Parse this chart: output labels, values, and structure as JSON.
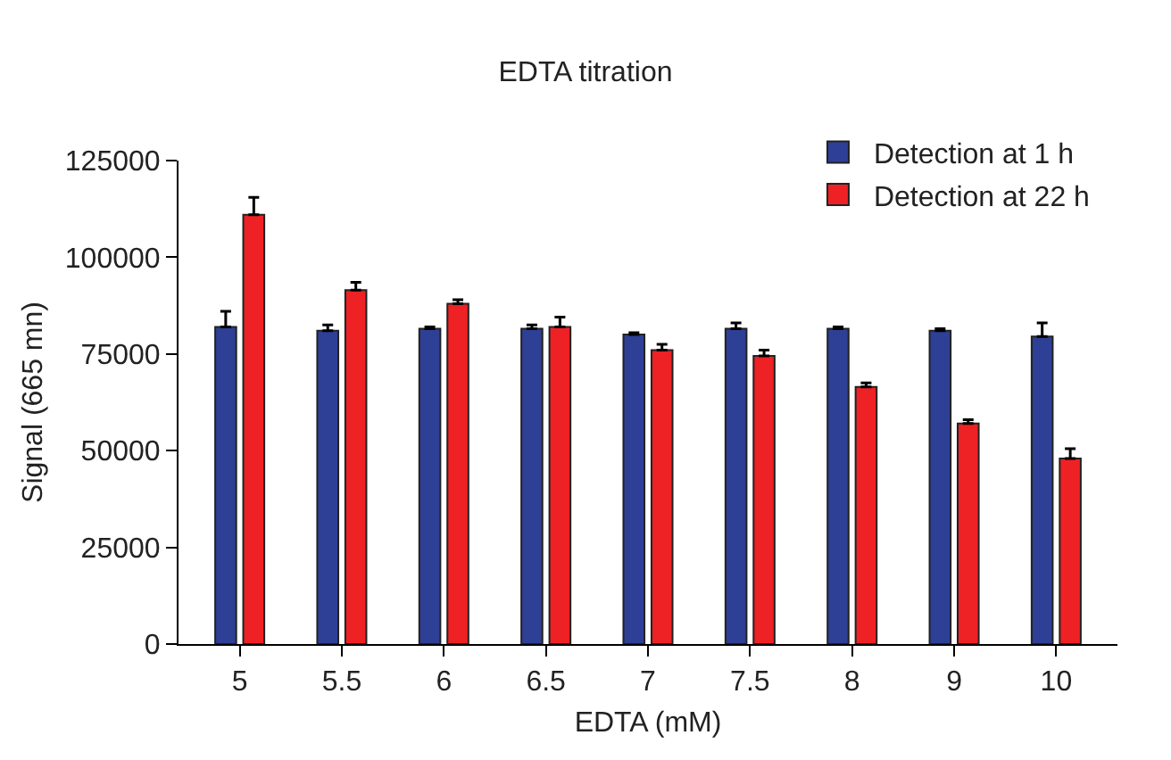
{
  "chart_data": {
    "type": "bar",
    "title": "EDTA titration",
    "xlabel": "EDTA (mM)",
    "ylabel": "Signal (665 mn)",
    "categories": [
      "5",
      "5.5",
      "6",
      "6.5",
      "7",
      "7.5",
      "8",
      "9",
      "10"
    ],
    "series": [
      {
        "name": "Detection at 1 h",
        "color": "#2e3f96",
        "values": [
          82000,
          81000,
          81500,
          81500,
          80000,
          81500,
          81500,
          81000,
          79500
        ],
        "errors": [
          [
            82000,
            86000
          ],
          [
            81000,
            82500
          ],
          [
            81500,
            82000
          ],
          [
            81500,
            82500
          ],
          [
            80000,
            80500
          ],
          [
            81500,
            83000
          ],
          [
            81500,
            82000
          ],
          [
            81000,
            81500
          ],
          [
            79500,
            83000
          ]
        ]
      },
      {
        "name": "Detection at 22 h",
        "color": "#ee2124",
        "values": [
          111000,
          91500,
          88000,
          82000,
          76000,
          74500,
          66500,
          57000,
          48000
        ],
        "errors": [
          [
            111000,
            115500
          ],
          [
            91500,
            93500
          ],
          [
            88000,
            89000
          ],
          [
            82000,
            84500
          ],
          [
            76000,
            77500
          ],
          [
            74500,
            76000
          ],
          [
            66500,
            67500
          ],
          [
            57000,
            58000
          ],
          [
            48000,
            50500
          ]
        ]
      }
    ],
    "ylim": [
      0,
      125000
    ],
    "yticks": [
      0,
      25000,
      50000,
      75000,
      100000,
      125000
    ],
    "legend": "top right"
  }
}
